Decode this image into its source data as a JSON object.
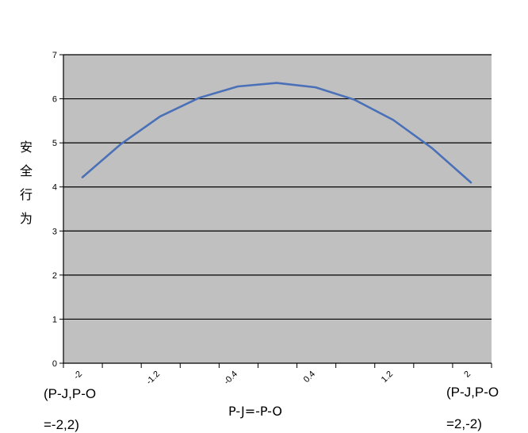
{
  "chart_data": {
    "type": "line",
    "title": "",
    "xlabel": "P-J=-P-O",
    "ylabel": "安全行为",
    "x_tick_labels": [
      "-2",
      "-1.2",
      "-0.4",
      "0.4",
      "1.2",
      "2"
    ],
    "y_tick_labels": [
      "0",
      "1",
      "2",
      "3",
      "4",
      "5",
      "6",
      "7"
    ],
    "ylim": [
      0,
      7
    ],
    "xlim": [
      -2,
      2
    ],
    "grid": "horizontal",
    "legend": "none",
    "corner_labels": {
      "left": [
        "(P-J,P-O",
        "=-2,2)"
      ],
      "right": [
        "(P-J,P-O",
        "=2,-2)"
      ]
    },
    "series": [
      {
        "x": [
          -2,
          -1.6,
          -1.2,
          -0.8,
          -0.4,
          0,
          0.4,
          0.8,
          1.2,
          1.6,
          2
        ],
        "values": [
          4.22,
          4.98,
          5.6,
          6.02,
          6.28,
          6.36,
          6.26,
          5.98,
          5.52,
          4.88,
          4.1
        ]
      }
    ],
    "colors": {
      "plot_background": "#c0c0c0",
      "line": "#4a70b8",
      "gridline": "#000000"
    }
  }
}
